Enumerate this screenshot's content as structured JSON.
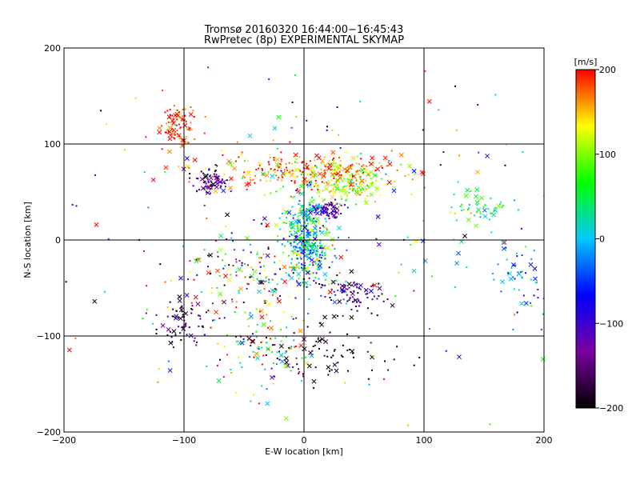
{
  "chart_data": {
    "type": "scatter",
    "title": "Tromsø 20160320 16:44:00−16:45:43",
    "subtitle": "RwPretec (8p) EXPERIMENTAL SKYMAP",
    "xlabel": "E-W location [km]",
    "ylabel": "N-S location [km]",
    "xlim": [
      -200,
      200
    ],
    "ylim": [
      -200,
      200
    ],
    "xticks": [
      "−200",
      "−100",
      "0",
      "100",
      "200"
    ],
    "yticks": [
      "−200",
      "−100",
      "0",
      "100",
      "200"
    ],
    "grid": "lines at −100, 0, 100 on both axes",
    "colorbar": {
      "label": "[m/s]",
      "range": [
        -200,
        200
      ],
      "ticks": [
        "200",
        "100",
        "0",
        "−100",
        "−200"
      ],
      "colors": [
        "#000000",
        "#7a00a0",
        "#0000ff",
        "#00c8ff",
        "#00ff00",
        "#ffff00",
        "#ff0000"
      ]
    },
    "markers": [
      "cross",
      "dot"
    ],
    "clusters": [
      {
        "name": "north-west-red",
        "cx": -105,
        "cy": 120,
        "sx": 8,
        "sy": 12,
        "n": 90,
        "v": 185,
        "vsd": 25
      },
      {
        "name": "north-west-blue",
        "cx": -78,
        "cy": 62,
        "sx": 7,
        "sy": 7,
        "n": 70,
        "v": -140,
        "vsd": 45
      },
      {
        "name": "north-red-band",
        "cx": 5,
        "cy": 72,
        "sx": 40,
        "sy": 10,
        "n": 260,
        "v": 170,
        "vsd": 40
      },
      {
        "name": "north-yellow",
        "cx": 40,
        "cy": 58,
        "sx": 16,
        "sy": 10,
        "n": 140,
        "v": 110,
        "vsd": 30
      },
      {
        "name": "center-green",
        "cx": 3,
        "cy": 5,
        "sx": 9,
        "sy": 22,
        "n": 320,
        "v": 15,
        "vsd": 60
      },
      {
        "name": "center-blue",
        "cx": 22,
        "cy": 30,
        "sx": 7,
        "sy": 5,
        "n": 60,
        "v": -110,
        "vsd": 30
      },
      {
        "name": "east-green",
        "cx": 150,
        "cy": 32,
        "sx": 12,
        "sy": 8,
        "n": 45,
        "v": 60,
        "vsd": 40
      },
      {
        "name": "far-east-cyan",
        "cx": 180,
        "cy": -40,
        "sx": 14,
        "sy": 18,
        "n": 50,
        "v": -20,
        "vsd": 40
      },
      {
        "name": "south-west-dark",
        "cx": -100,
        "cy": -85,
        "sx": 12,
        "sy": 12,
        "n": 70,
        "v": -170,
        "vsd": 40
      },
      {
        "name": "south-mixed",
        "cx": -30,
        "cy": -115,
        "sx": 22,
        "sy": 20,
        "n": 110,
        "v": 60,
        "vsd": 120
      },
      {
        "name": "south-east-dark",
        "cx": 40,
        "cy": -55,
        "sx": 14,
        "sy": 8,
        "n": 80,
        "v": -140,
        "vsd": 70
      },
      {
        "name": "south-dark-dots",
        "cx": 30,
        "cy": -120,
        "sx": 30,
        "sy": 20,
        "n": 70,
        "v": -190,
        "vsd": 20
      },
      {
        "name": "west-mixed",
        "cx": -40,
        "cy": -35,
        "sx": 30,
        "sy": 22,
        "n": 160,
        "v": 60,
        "vsd": 130
      },
      {
        "name": "scatter-all",
        "cx": 0,
        "cy": 0,
        "sx": 110,
        "sy": 95,
        "n": 260,
        "v": 30,
        "vsd": 150
      }
    ]
  }
}
